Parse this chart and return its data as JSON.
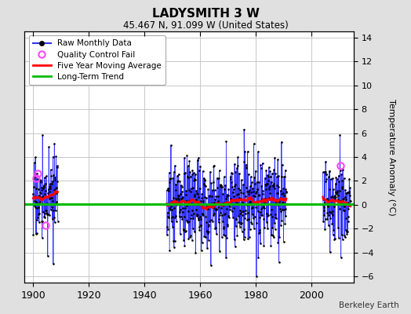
{
  "title": "LADYSMITH 3 W",
  "subtitle": "45.467 N, 91.099 W (United States)",
  "ylabel": "Temperature Anomaly (°C)",
  "credit": "Berkeley Earth",
  "xlim": [
    1897,
    2015
  ],
  "ylim": [
    -6.5,
    14.5
  ],
  "yticks": [
    -6,
    -4,
    -2,
    0,
    2,
    4,
    6,
    8,
    10,
    12,
    14
  ],
  "xticks": [
    1900,
    1920,
    1940,
    1960,
    1980,
    2000
  ],
  "background_color": "#e0e0e0",
  "plot_bg_color": "#ffffff",
  "raw_line_color": "#3333ff",
  "raw_dot_color": "#000000",
  "qc_fail_color": "#ff44ff",
  "moving_avg_color": "#ff0000",
  "trend_color": "#00bb00",
  "grid_color": "#c8c8c8",
  "seg1_start": 1900,
  "seg1_end": 1908,
  "seg2_start": 1948,
  "seg2_end": 1990,
  "seg3_start": 2004,
  "seg3_end": 2013,
  "seg1_mean": 0.5,
  "seg2_mean": 0.2,
  "seg3_mean": 0.3,
  "seg1_std": 1.6,
  "seg2_std": 1.9,
  "seg3_std": 1.5,
  "trend_y": 0.05,
  "seed": 17
}
